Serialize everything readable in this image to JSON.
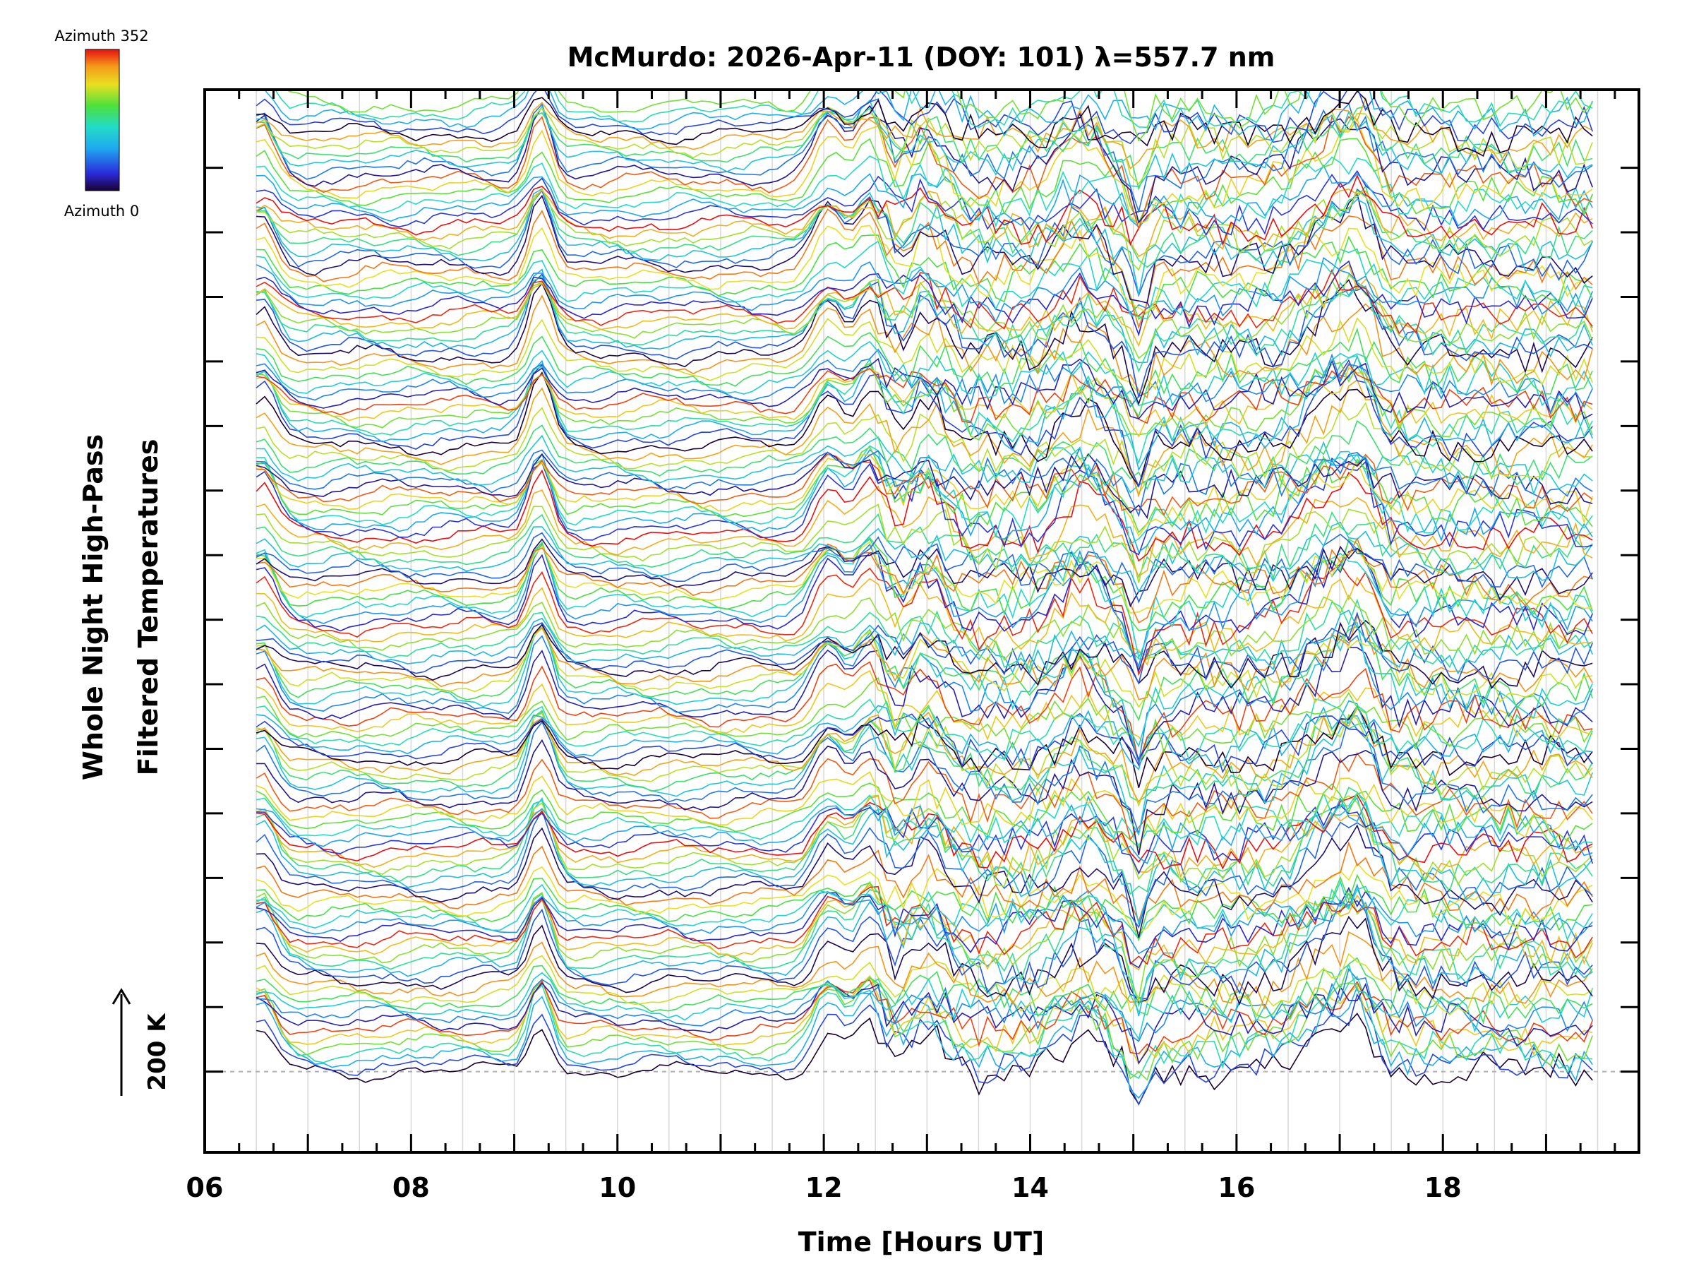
{
  "chart_data": {
    "type": "line",
    "title": "McMurdo: 2026-Apr-11 (DOY: 101) λ=557.7 nm",
    "xlabel": "Time [Hours UT]",
    "ylabel_lines": [
      "Whole Night High-Pass",
      "Filtered Temperatures"
    ],
    "xlim": [
      6,
      19.9
    ],
    "x_ticks": [
      {
        "value": 6,
        "label": "06"
      },
      {
        "value": 8,
        "label": "08"
      },
      {
        "value": 10,
        "label": "10"
      },
      {
        "value": 12,
        "label": "12"
      },
      {
        "value": 14,
        "label": "14"
      },
      {
        "value": 16,
        "label": "16"
      },
      {
        "value": 18,
        "label": "18"
      }
    ],
    "x_start": 6.5,
    "x_end": 19.45,
    "grid": "vertical",
    "y_major_tick_count": 15,
    "colorbar": {
      "top_label": "Azimuth 352",
      "bottom_label": "Azimuth 0",
      "colormap": "rainbow"
    },
    "scale_indicator": "200 K",
    "baseline": "dashed",
    "series_description": "Stacked azimuth traces colored by azimuth (0 to 352 deg)",
    "series_count": 140,
    "common_features": [
      {
        "x": 6.55,
        "amplitude": 55,
        "width": 0.18
      },
      {
        "x": 9.25,
        "amplitude": 70,
        "width": 0.15
      },
      {
        "x": 12.05,
        "amplitude": 55,
        "width": 0.2
      },
      {
        "x": 12.45,
        "amplitude": 65,
        "width": 0.18
      },
      {
        "x": 13.0,
        "amplitude": 45,
        "width": 0.25
      },
      {
        "x": 14.5,
        "amplitude": 40,
        "width": 0.3
      },
      {
        "x": 15.05,
        "amplitude": -40,
        "width": 0.1
      },
      {
        "x": 16.9,
        "amplitude": 45,
        "width": 0.35
      },
      {
        "x": 17.2,
        "amplitude": 40,
        "width": 0.2
      }
    ],
    "colors": {
      "grid": "#d8d8d8",
      "baseline": "#b0b0b0",
      "axis": "#000000"
    }
  }
}
